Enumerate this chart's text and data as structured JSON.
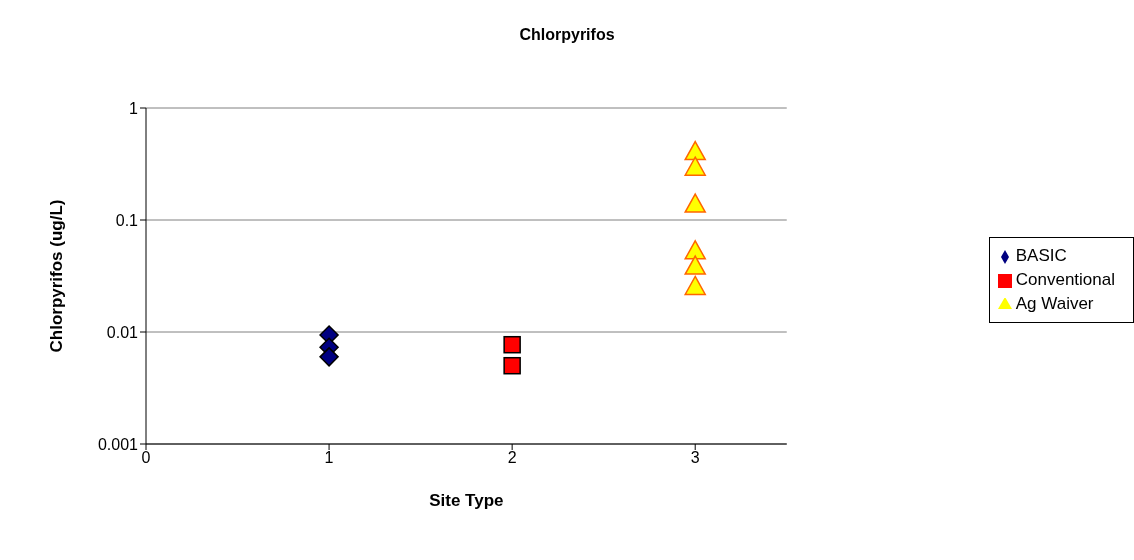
{
  "chart_data": {
    "type": "scatter",
    "title": "Chlorpyrifos",
    "xlabel": "Site Type",
    "ylabel": "Chlorpyrifos (ug/L)",
    "log": "y",
    "xlim": [
      0,
      3.5
    ],
    "xticks": [
      0,
      1,
      2,
      3
    ],
    "ylim": [
      0.001,
      1
    ],
    "yticks": [
      {
        "value": 0.001,
        "label": "0.001"
      },
      {
        "value": 0.01,
        "label": "0.01"
      },
      {
        "value": 0.1,
        "label": "0.1"
      },
      1
    ],
    "grid": "y",
    "legend": "right",
    "series": [
      {
        "name": "BASIC",
        "color": "#000080",
        "marker": "diamond",
        "x": [
          1,
          1,
          1
        ],
        "values": [
          0.0094,
          0.0073,
          0.006
        ]
      },
      {
        "name": "Conventional",
        "color": "#ff0000",
        "marker": "square",
        "x": [
          2,
          2
        ],
        "values": [
          0.0077,
          0.005
        ]
      },
      {
        "name": "Ag Waiver",
        "color": "#ffff00",
        "marker": "triangle",
        "x": [
          3,
          3,
          3,
          3,
          3,
          3
        ],
        "values": [
          0.4,
          0.29,
          0.136,
          0.052,
          0.038,
          0.025
        ]
      }
    ]
  }
}
